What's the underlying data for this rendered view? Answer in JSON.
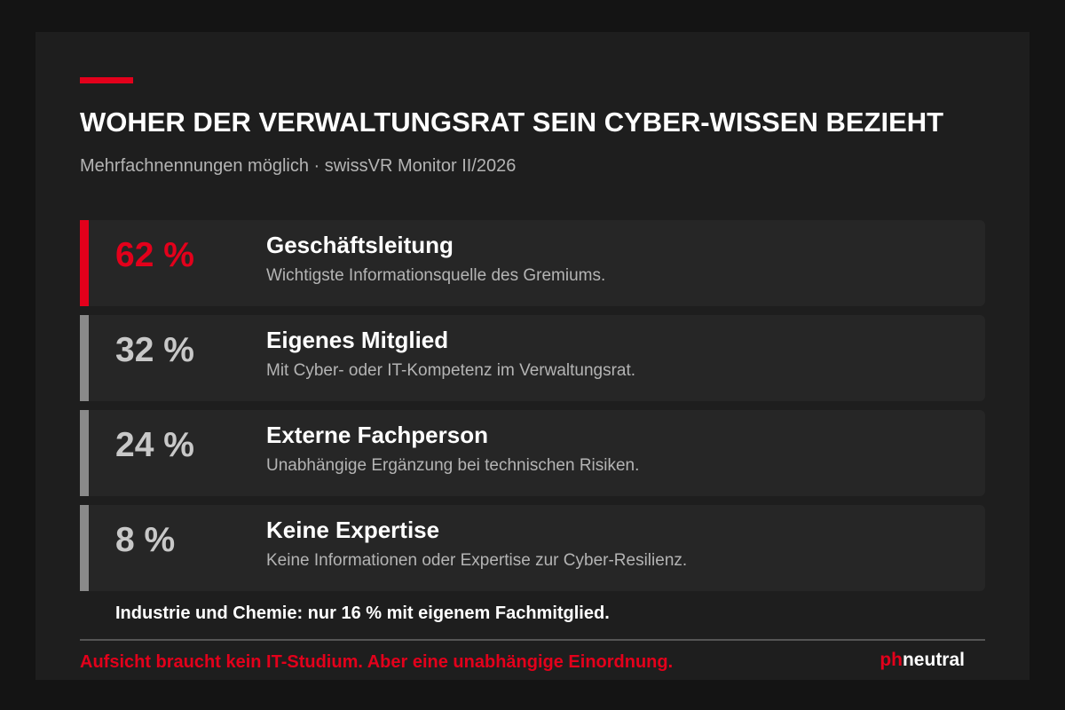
{
  "header": {
    "title": "WOHER DER VERWALTUNGSRAT SEIN CYBER-WISSEN BEZIEHT",
    "subtitle": "Mehrfachnennungen möglich · swissVR Monitor II/2026"
  },
  "items": [
    {
      "value": "62 %",
      "label": "Geschäftsleitung",
      "description": "Wichtigste Informationsquelle des Gremiums.",
      "highlight": true
    },
    {
      "value": "32 %",
      "label": "Eigenes Mitglied",
      "description": "Mit Cyber- oder IT-Kompetenz im Verwaltungsrat.",
      "highlight": false
    },
    {
      "value": "24 %",
      "label": "Externe Fachperson",
      "description": "Unabhängige Ergänzung bei technischen Risiken.",
      "highlight": false
    },
    {
      "value": "8 %",
      "label": "Keine Expertise",
      "description": "Keine Informationen oder Expertise zur Cyber-Resilienz.",
      "highlight": false
    }
  ],
  "note": "Industrie und Chemie: nur 16 % mit eigenem Fachmitglied.",
  "footer": {
    "tagline": "Aufsicht braucht kein IT-Studium. Aber eine unabhängige Einordnung.",
    "brand_prefix": "ph",
    "brand_suffix": "neutral"
  }
}
